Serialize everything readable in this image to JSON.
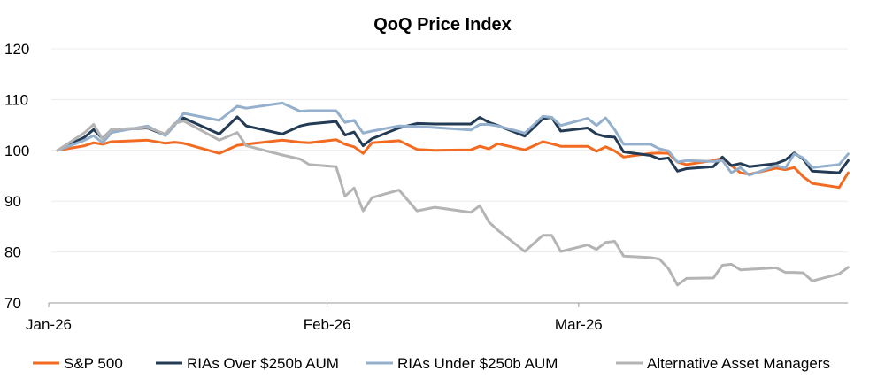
{
  "chart_data": {
    "type": "line",
    "title": "QoQ Price Index",
    "xlabel": "",
    "ylabel": "",
    "ylim": [
      70,
      120
    ],
    "yticks": [
      70,
      80,
      90,
      100,
      110,
      120
    ],
    "xticks": [
      {
        "date": "2026-01-01",
        "label": "Jan-26"
      },
      {
        "date": "2026-02-01",
        "label": "Feb-26"
      },
      {
        "date": "2026-03-01",
        "label": "Mar-26"
      }
    ],
    "xlim": [
      "2026-01-01",
      "2026-03-31"
    ],
    "grid": "horizontal",
    "legend_position": "bottom",
    "x": [
      "2026-01-02",
      "2026-01-05",
      "2026-01-06",
      "2026-01-07",
      "2026-01-08",
      "2026-01-12",
      "2026-01-14",
      "2026-01-15",
      "2026-01-16",
      "2026-01-20",
      "2026-01-22",
      "2026-01-23",
      "2026-01-27",
      "2026-01-29",
      "2026-01-30",
      "2026-02-02",
      "2026-02-03",
      "2026-02-04",
      "2026-02-05",
      "2026-02-06",
      "2026-02-09",
      "2026-02-11",
      "2026-02-13",
      "2026-02-17",
      "2026-02-18",
      "2026-02-19",
      "2026-02-20",
      "2026-02-23",
      "2026-02-25",
      "2026-02-26",
      "2026-02-27",
      "2026-03-02",
      "2026-03-03",
      "2026-03-04",
      "2026-03-05",
      "2026-03-06",
      "2026-03-09",
      "2026-03-10",
      "2026-03-11",
      "2026-03-12",
      "2026-03-13",
      "2026-03-16",
      "2026-03-17",
      "2026-03-18",
      "2026-03-19",
      "2026-03-20",
      "2026-03-23",
      "2026-03-24",
      "2026-03-25",
      "2026-03-26",
      "2026-03-27",
      "2026-03-30",
      "2026-03-31"
    ],
    "series": [
      {
        "name": "S&P 500",
        "color": "#F26B21",
        "values": [
          100,
          100.9,
          101.5,
          101.2,
          101.7,
          102,
          101.4,
          101.6,
          101.4,
          99.4,
          101,
          101.2,
          102,
          101.6,
          101.5,
          102.1,
          101.2,
          100.7,
          99.4,
          101.5,
          101.9,
          100.2,
          100,
          100.1,
          100.8,
          100.3,
          101.3,
          100.1,
          101.7,
          101.3,
          100.8,
          100.8,
          99.8,
          100.7,
          99.9,
          98.7,
          99.4,
          99.5,
          99.4,
          97.7,
          97.2,
          98,
          98.5,
          97,
          95.6,
          95.3,
          96.5,
          96.2,
          96.6,
          94.8,
          93.5,
          92.7,
          95.6
        ]
      },
      {
        "name": "RIAs Over $250b AUM",
        "color": "#243B55",
        "values": [
          100,
          102.6,
          104.1,
          102.3,
          104.1,
          104.4,
          103,
          105.2,
          106.4,
          103.2,
          106.6,
          104.8,
          103.2,
          104.8,
          105.2,
          105.7,
          103,
          103.6,
          100.9,
          102.3,
          104.4,
          105.3,
          105.2,
          105.2,
          106.5,
          105.5,
          104.9,
          102.8,
          106.2,
          106.5,
          103.8,
          104.4,
          103.2,
          102.7,
          102.6,
          99.7,
          99,
          98.3,
          98.5,
          95.9,
          96.4,
          96.8,
          98.7,
          97,
          97.4,
          96.8,
          97.4,
          98.1,
          99.5,
          98.3,
          95.9,
          95.6,
          98
        ]
      },
      {
        "name": "RIAs Under $250b AUM",
        "color": "#94B0CC",
        "values": [
          100,
          102,
          102.9,
          101.5,
          103.5,
          104.8,
          102.9,
          104.9,
          107.3,
          105.9,
          108.7,
          108.3,
          109.3,
          107.7,
          107.8,
          107.8,
          105.5,
          105.9,
          103.4,
          103.8,
          104.8,
          104.7,
          104.5,
          104,
          105.1,
          105.1,
          104.8,
          103.4,
          106.7,
          106.5,
          104.9,
          106.3,
          104.9,
          106.4,
          104.1,
          101.2,
          101.2,
          100.3,
          99.9,
          97.7,
          98,
          97.8,
          98,
          95.6,
          96.6,
          95.1,
          97,
          96.5,
          99.3,
          98.5,
          96.6,
          97.2,
          99.3
        ]
      },
      {
        "name": "Alternative Asset Managers",
        "color": "#B4B4B4",
        "values": [
          100,
          103.5,
          105.1,
          102.2,
          104.1,
          104.5,
          103.2,
          105.3,
          105.8,
          102,
          103.5,
          100.9,
          99.1,
          98.3,
          97.2,
          96.8,
          91,
          92.6,
          88.1,
          90.7,
          92.2,
          88.1,
          88.8,
          87.8,
          89.1,
          85.9,
          84.3,
          80.1,
          83.3,
          83.3,
          80.1,
          81.4,
          80.5,
          81.9,
          82.1,
          79.2,
          78.9,
          78.6,
          76.7,
          73.5,
          74.8,
          74.9,
          77.4,
          77.6,
          76.5,
          76.6,
          76.9,
          76,
          76,
          75.9,
          74.3,
          75.7,
          77
        ]
      }
    ]
  }
}
